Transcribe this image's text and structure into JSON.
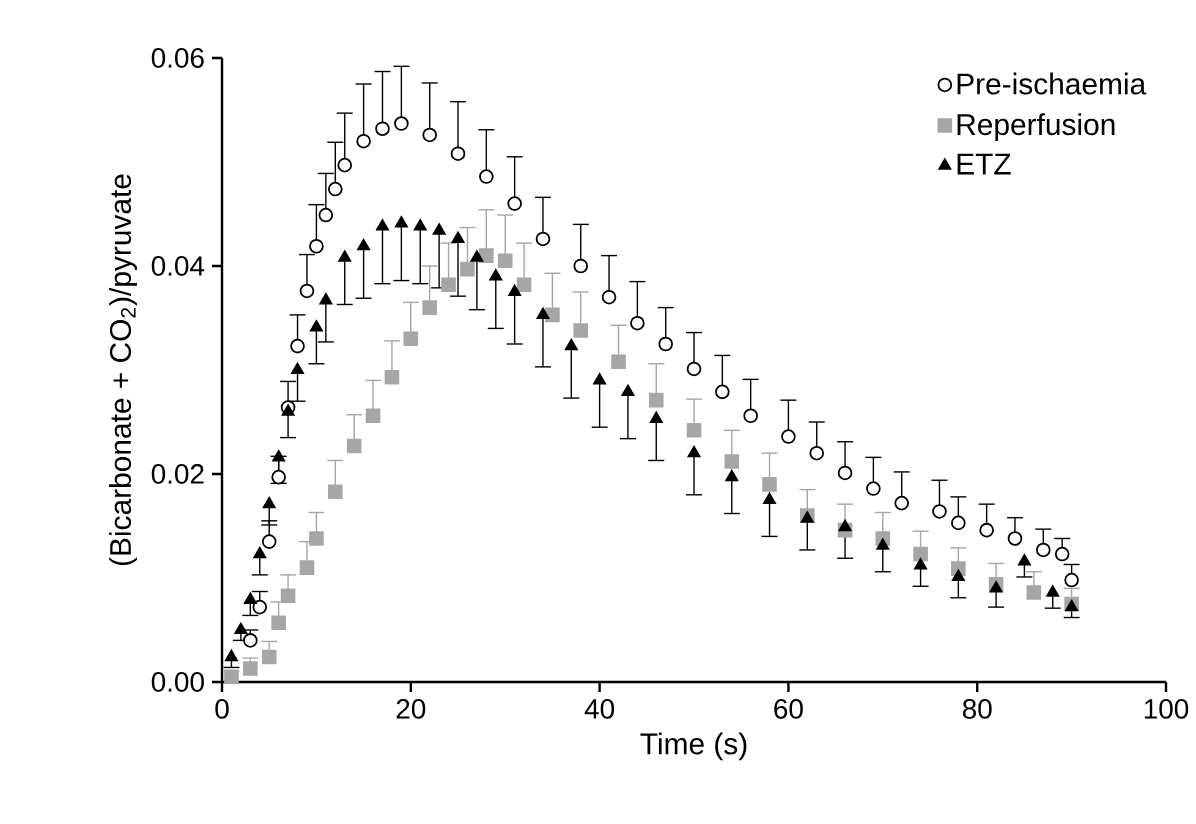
{
  "chart_data": {
    "type": "scatter",
    "xlabel": "Time (s)",
    "ylabel": "(Bicarbonate + CO$_{2}$)/pyruvate",
    "xlim": [
      0,
      100
    ],
    "xticks": [
      0,
      20,
      40,
      60,
      80,
      100
    ],
    "ylim": [
      0,
      0.06
    ],
    "yticks": [
      {
        "value": 0,
        "label": "0.00"
      },
      {
        "value": 0.02,
        "label": "0.02"
      },
      {
        "value": 0.04,
        "label": "0.04"
      },
      {
        "value": 0.06,
        "label": "0.06"
      }
    ],
    "grid": false,
    "legend": "top right",
    "series": [
      {
        "name": "Pre-ischaemia",
        "color": "#000000",
        "marker": "circle",
        "x": [
          3,
          4,
          5,
          6,
          7,
          8,
          9,
          10,
          11,
          12,
          13,
          15,
          17,
          19,
          22,
          25,
          28,
          31,
          34,
          38,
          41,
          44,
          47,
          50,
          53,
          56,
          60,
          63,
          66,
          69,
          72,
          76,
          78,
          81,
          84,
          87,
          89,
          90
        ],
        "values": [
          0.004,
          0.0072,
          0.0135,
          0.0197,
          0.0264,
          0.0323,
          0.0376,
          0.0419,
          0.0449,
          0.0474,
          0.0497,
          0.052,
          0.0532,
          0.0537,
          0.0526,
          0.0508,
          0.0486,
          0.046,
          0.0426,
          0.04,
          0.037,
          0.0345,
          0.0325,
          0.0301,
          0.0279,
          0.0256,
          0.0236,
          0.022,
          0.0201,
          0.0186,
          0.0172,
          0.0164,
          0.0153,
          0.0146,
          0.0138,
          0.0127,
          0.0123,
          0.0098
        ],
        "errors": [
          [
            0.004,
            0.005
          ],
          [
            0.0072,
            0.0087
          ],
          [
            0.0135,
            0.0155
          ],
          [
            0.0197,
            0.0217
          ],
          [
            0.0264,
            0.0289
          ],
          [
            0.0323,
            0.0353
          ],
          [
            0.0376,
            0.0411
          ],
          [
            0.0419,
            0.0459
          ],
          [
            0.0449,
            0.0489
          ],
          [
            0.0474,
            0.0519
          ],
          [
            0.0497,
            0.0547
          ],
          [
            0.052,
            0.0575
          ],
          [
            0.0532,
            0.0587
          ],
          [
            0.0537,
            0.0592
          ],
          [
            0.0526,
            0.0576
          ],
          [
            0.0508,
            0.0558
          ],
          [
            0.0486,
            0.0531
          ],
          [
            0.046,
            0.0505
          ],
          [
            0.0426,
            0.0466
          ],
          [
            0.04,
            0.044
          ],
          [
            0.037,
            0.041
          ],
          [
            0.0345,
            0.0385
          ],
          [
            0.0325,
            0.036
          ],
          [
            0.0301,
            0.0336
          ],
          [
            0.0279,
            0.0314
          ],
          [
            0.0256,
            0.0291
          ],
          [
            0.0236,
            0.0271
          ],
          [
            0.022,
            0.025
          ],
          [
            0.0201,
            0.0231
          ],
          [
            0.0186,
            0.0216
          ],
          [
            0.0172,
            0.0202
          ],
          [
            0.0164,
            0.0194
          ],
          [
            0.0153,
            0.0178
          ],
          [
            0.0146,
            0.0171
          ],
          [
            0.0138,
            0.0158
          ],
          [
            0.0127,
            0.0147
          ],
          [
            0.0123,
            0.0138
          ],
          [
            0.0098,
            0.0113
          ]
        ]
      },
      {
        "name": "Reperfusion",
        "color": "#a6a6a6",
        "marker": "square",
        "x": [
          1,
          3,
          5,
          6,
          7,
          9,
          10,
          12,
          14,
          16,
          18,
          20,
          22,
          24,
          26,
          28,
          30,
          32,
          35,
          38,
          42,
          46,
          50,
          54,
          58,
          62,
          66,
          70,
          74,
          78,
          82,
          86,
          90
        ],
        "values": [
          0.0005,
          0.0013,
          0.0024,
          0.0057,
          0.0083,
          0.011,
          0.0138,
          0.0183,
          0.0227,
          0.0256,
          0.0293,
          0.033,
          0.036,
          0.0382,
          0.0397,
          0.041,
          0.0405,
          0.0382,
          0.0353,
          0.0338,
          0.0308,
          0.0271,
          0.0242,
          0.0212,
          0.019,
          0.016,
          0.0146,
          0.0138,
          0.0123,
          0.0109,
          0.0094,
          0.0086,
          0.0075
        ],
        "errors": [
          [
            0.0005,
            0.001
          ],
          [
            0.0013,
            0.0023
          ],
          [
            0.0024,
            0.0039
          ],
          [
            0.0057,
            0.0077
          ],
          [
            0.0083,
            0.0103
          ],
          [
            0.011,
            0.0135
          ],
          [
            0.0138,
            0.0163
          ],
          [
            0.0183,
            0.0213
          ],
          [
            0.0227,
            0.0257
          ],
          [
            0.0256,
            0.029
          ],
          [
            0.0293,
            0.0328
          ],
          [
            0.033,
            0.0365
          ],
          [
            0.036,
            0.04
          ],
          [
            0.0382,
            0.0422
          ],
          [
            0.0397,
            0.0437
          ],
          [
            0.041,
            0.0454
          ],
          [
            0.0405,
            0.0449
          ],
          [
            0.0382,
            0.0422
          ],
          [
            0.0353,
            0.0393
          ],
          [
            0.0338,
            0.0375
          ],
          [
            0.0308,
            0.0343
          ],
          [
            0.0271,
            0.0306
          ],
          [
            0.0242,
            0.0272
          ],
          [
            0.0212,
            0.0242
          ],
          [
            0.019,
            0.022
          ],
          [
            0.016,
            0.0185
          ],
          [
            0.0146,
            0.0171
          ],
          [
            0.0138,
            0.0163
          ],
          [
            0.0123,
            0.0145
          ],
          [
            0.0109,
            0.0129
          ],
          [
            0.0094,
            0.0114
          ],
          [
            0.0086,
            0.0106
          ],
          [
            0.0075,
            0.009
          ]
        ]
      },
      {
        "name": "ETZ",
        "color": "#000000",
        "marker": "triangle",
        "x": [
          1,
          2,
          3,
          4,
          5,
          6,
          7,
          8,
          10,
          11,
          13,
          15,
          17,
          19,
          21,
          23,
          25,
          27,
          29,
          31,
          34,
          37,
          40,
          43,
          46,
          50,
          54,
          58,
          62,
          66,
          70,
          74,
          78,
          82,
          85,
          88,
          90
        ],
        "values": [
          0.0024,
          0.005,
          0.0079,
          0.0123,
          0.0171,
          0.0216,
          0.026,
          0.03,
          0.0341,
          0.0367,
          0.0408,
          0.0419,
          0.0438,
          0.0441,
          0.0438,
          0.0434,
          0.0426,
          0.0408,
          0.039,
          0.0375,
          0.0353,
          0.0323,
          0.029,
          0.0279,
          0.0253,
          0.022,
          0.0197,
          0.0175,
          0.0157,
          0.0149,
          0.0131,
          0.0112,
          0.0101,
          0.009,
          0.0116,
          0.0086,
          0.0072
        ],
        "errors": [
          [
            0.0014,
            0.0024
          ],
          [
            0.004,
            0.005
          ],
          [
            0.0064,
            0.0079
          ],
          [
            0.0103,
            0.0123
          ],
          [
            0.0151,
            0.0171
          ],
          [
            0.0191,
            0.0216
          ],
          [
            0.0235,
            0.026
          ],
          [
            0.027,
            0.03
          ],
          [
            0.0306,
            0.0341
          ],
          [
            0.0327,
            0.0367
          ],
          [
            0.0363,
            0.0408
          ],
          [
            0.0369,
            0.0419
          ],
          [
            0.0383,
            0.0438
          ],
          [
            0.0386,
            0.0441
          ],
          [
            0.0383,
            0.0438
          ],
          [
            0.0379,
            0.0434
          ],
          [
            0.0371,
            0.0426
          ],
          [
            0.0358,
            0.0408
          ],
          [
            0.034,
            0.039
          ],
          [
            0.0325,
            0.0375
          ],
          [
            0.0303,
            0.0353
          ],
          [
            0.0273,
            0.0323
          ],
          [
            0.0245,
            0.029
          ],
          [
            0.0234,
            0.0279
          ],
          [
            0.0213,
            0.0253
          ],
          [
            0.018,
            0.022
          ],
          [
            0.0162,
            0.0197
          ],
          [
            0.014,
            0.0175
          ],
          [
            0.0127,
            0.0157
          ],
          [
            0.0119,
            0.0149
          ],
          [
            0.0106,
            0.0131
          ],
          [
            0.0092,
            0.0112
          ],
          [
            0.0081,
            0.0101
          ],
          [
            0.0072,
            0.009
          ],
          [
            0.0101,
            0.0116
          ],
          [
            0.0071,
            0.0086
          ],
          [
            0.0062,
            0.0072
          ]
        ]
      }
    ]
  }
}
